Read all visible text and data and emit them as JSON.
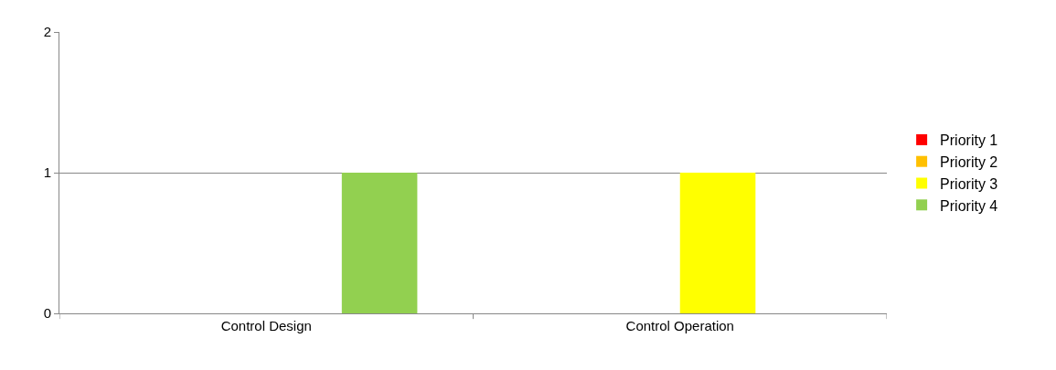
{
  "chart_data": {
    "type": "bar",
    "categories": [
      "Control Design",
      "Control Operation"
    ],
    "series": [
      {
        "name": "Priority 1",
        "color": "#ff0000",
        "values": [
          0,
          0
        ]
      },
      {
        "name": "Priority 2",
        "color": "#ffc000",
        "values": [
          0,
          0
        ]
      },
      {
        "name": "Priority 3",
        "color": "#ffff00",
        "values": [
          0,
          1
        ]
      },
      {
        "name": "Priority 4",
        "color": "#92d050",
        "values": [
          1,
          0
        ]
      }
    ],
    "ylim": [
      0,
      2
    ],
    "yticks": [
      0,
      1,
      2
    ],
    "grid": "y",
    "legend": "right"
  }
}
